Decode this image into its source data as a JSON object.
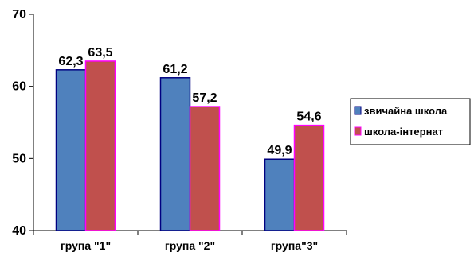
{
  "chart_data": {
    "type": "bar",
    "categories": [
      "група \"1\"",
      "група \"2\"",
      "група\"3\""
    ],
    "series": [
      {
        "name": "звичайна школа",
        "values": [
          62.3,
          61.2,
          49.9
        ],
        "value_labels": [
          "62,3",
          "61,2",
          "49,9"
        ],
        "color": "#4f81bd",
        "edge_color": "#000080"
      },
      {
        "name": "школа-інтернат",
        "values": [
          63.5,
          57.2,
          54.6
        ],
        "value_labels": [
          "63,5",
          "57,2",
          "54,6"
        ],
        "color": "#c0504d",
        "edge_color": "#ff00ff"
      }
    ],
    "yticks": [
      40,
      50,
      60,
      70
    ],
    "ytick_labels": [
      "40",
      "50",
      "60",
      "70"
    ],
    "ylim": [
      40,
      70
    ],
    "title": "",
    "xlabel": "",
    "ylabel": "",
    "grid": false,
    "legend": "right"
  }
}
